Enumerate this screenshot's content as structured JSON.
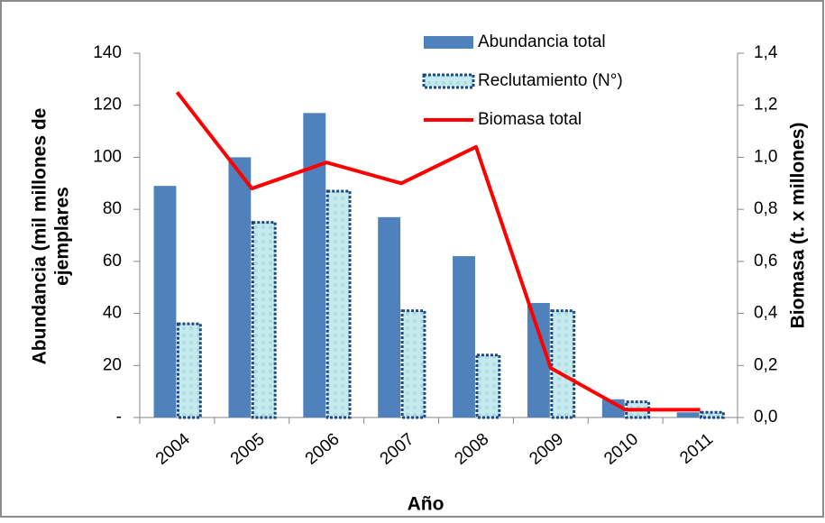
{
  "chart_data": {
    "type": "bar_line",
    "ylabel_lines": [
      "Abundancia (mil millones de",
      "ejemplares"
    ],
    "y2label": "Biomasa (t. x millones)",
    "xlabel": "Año",
    "categories": [
      "2004",
      "2005",
      "2006",
      "2007",
      "2008",
      "2009",
      "2010",
      "2011"
    ],
    "series": [
      {
        "name": "Abundancia total",
        "color": "#4f81bd",
        "kind": "bar",
        "values": [
          89,
          100,
          117,
          77,
          62,
          44,
          7,
          2
        ]
      },
      {
        "name": "Reclutamiento (N°)",
        "color": "#1f497d",
        "kind": "bar",
        "values": [
          36,
          75,
          87,
          41,
          24,
          41,
          6,
          2
        ]
      },
      {
        "name": "Biomasa total",
        "color": "#ff0000",
        "kind": "line",
        "axis": "y2",
        "values": [
          1.25,
          0.88,
          0.98,
          0.9,
          1.04,
          0.19,
          0.03,
          0.03
        ]
      }
    ],
    "ylim": [
      0,
      140
    ],
    "yticks": [
      {
        "value": 0,
        "label": "-"
      },
      20,
      40,
      60,
      80,
      100,
      120,
      140
    ],
    "y2lim": [
      0,
      1.4
    ],
    "y2ticks": [
      {
        "value": 0,
        "label": "0,0"
      },
      {
        "value": 0.2,
        "label": "0,2"
      },
      {
        "value": 0.4,
        "label": "0,4"
      },
      {
        "value": 0.6,
        "label": "0,6"
      },
      {
        "value": 0.8,
        "label": "0,8"
      },
      {
        "value": 1.0,
        "label": "1,0"
      },
      {
        "value": 1.2,
        "label": "1,2"
      },
      {
        "value": 1.4,
        "label": "1,4"
      }
    ]
  }
}
